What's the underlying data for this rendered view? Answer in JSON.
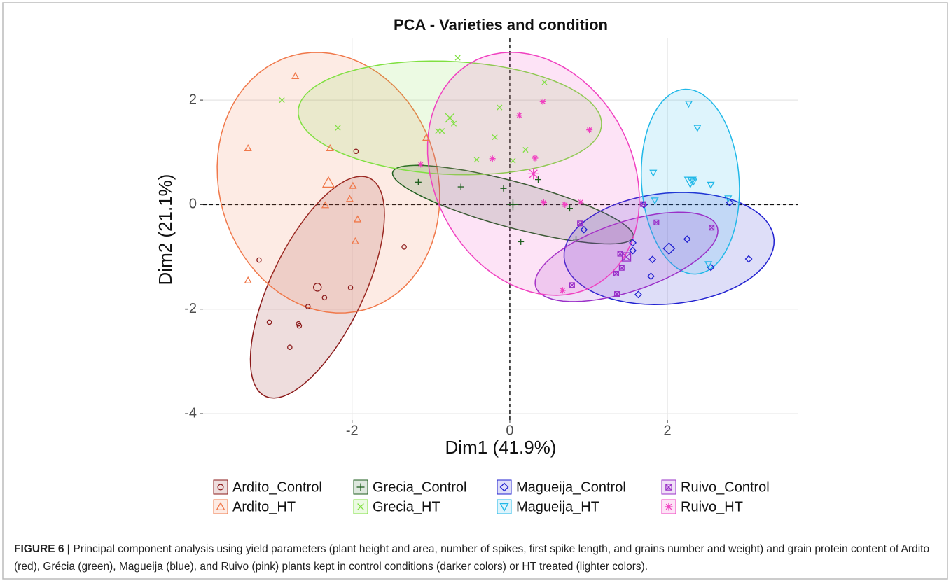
{
  "chart_data": {
    "type": "scatter",
    "title": "PCA - Varieties and condition",
    "x_label": "Dim1 (41.9%)",
    "y_label": "Dim2 (21.1%)",
    "xlim": [
      -3.89,
      3.66
    ],
    "ylim": [
      -4.12,
      3.18
    ],
    "xticks": [
      -2,
      0,
      2
    ],
    "yticks": [
      -4,
      -2,
      0,
      2
    ],
    "grid": true,
    "hline": 0,
    "vline": 0,
    "legend": "bottom",
    "series": [
      {
        "name": "Ardito_Control",
        "color": "#8b1a1a",
        "marker": "circle",
        "x": [
          -1.95,
          -3.18,
          -1.34,
          -2.02,
          -2.35,
          -2.56,
          -3.05,
          -2.68,
          -2.67,
          -2.79
        ],
        "y": [
          1.02,
          -1.06,
          -0.81,
          -1.59,
          -1.78,
          -1.95,
          -2.25,
          -2.28,
          -2.32,
          -2.73
        ],
        "centroid": {
          "x": -2.44,
          "y": -1.58
        },
        "ellipse": {
          "cx": -2.44,
          "cy": -1.58,
          "a": 2.2,
          "b": 0.62,
          "angle": 74
        }
      },
      {
        "name": "Ardito_HT",
        "color": "#f0784a",
        "marker": "triangle",
        "x": [
          -2.72,
          -3.32,
          -2.28,
          -1.06,
          -1.99,
          -2.03,
          -2.34,
          -1.93,
          -1.96,
          -3.32
        ],
        "y": [
          2.46,
          1.08,
          1.08,
          1.28,
          0.36,
          0.11,
          -0.01,
          -0.28,
          -0.7,
          -1.45
        ],
        "centroid": {
          "x": -2.3,
          "y": 0.42
        },
        "ellipse": {
          "cx": -2.3,
          "cy": 0.42,
          "a": 2.5,
          "b": 1.4,
          "angle": 95
        }
      },
      {
        "name": "Grecia_Control",
        "color": "#1e5e1e",
        "marker": "plus",
        "x": [
          -1.16,
          -0.62,
          -0.08,
          0.36,
          0.04,
          0.14,
          0.76,
          0.84
        ],
        "y": [
          0.43,
          0.34,
          0.31,
          0.48,
          0,
          -0.71,
          -0.07,
          -0.66
        ],
        "centroid": {
          "x": 0.04,
          "y": 0
        },
        "ellipse": {
          "cx": 0.04,
          "cy": 0,
          "a": 1.65,
          "b": 0.42,
          "angle": -23
        }
      },
      {
        "name": "Grecia_HT",
        "color": "#7fe040",
        "marker": "x",
        "x": [
          -2.89,
          -2.18,
          -0.66,
          -0.91,
          -0.86,
          -0.71,
          -0.13,
          -0.19,
          0.2,
          0.44,
          -0.42,
          0.04
        ],
        "y": [
          2.0,
          1.47,
          2.81,
          1.41,
          1.41,
          1.55,
          1.86,
          1.29,
          1.05,
          2.34,
          0.86,
          0.84
        ],
        "centroid": {
          "x": -0.76,
          "y": 1.66
        },
        "ellipse": {
          "cx": -0.76,
          "cy": 1.66,
          "a": 1.93,
          "b": 1.08,
          "angle": -5
        }
      },
      {
        "name": "Magueija_Control",
        "color": "#2020d0",
        "marker": "diamond",
        "x": [
          1.7,
          0.94,
          1.56,
          1.56,
          1.81,
          1.79,
          2.25,
          2.79,
          3.03,
          1.63,
          2.55
        ],
        "y": [
          0,
          -0.48,
          -0.73,
          -0.88,
          -1.05,
          -1.37,
          -0.66,
          0.04,
          -1.04,
          -1.72,
          -1.2
        ],
        "centroid": {
          "x": 2.02,
          "y": -0.84
        },
        "ellipse": {
          "cx": 2.02,
          "cy": -0.84,
          "a": 1.35,
          "b": 1.05,
          "angle": 15
        }
      },
      {
        "name": "Magueija_HT",
        "color": "#20b8e8",
        "marker": "triangle-down",
        "x": [
          2.27,
          2.38,
          1.82,
          2.3,
          2.33,
          2.55,
          1.84,
          2.77,
          2.52
        ],
        "y": [
          1.93,
          1.47,
          0.61,
          0.47,
          0.44,
          0.38,
          0.08,
          0.12,
          -1.14
        ],
        "centroid": {
          "x": 2.29,
          "y": 0.44
        },
        "ellipse": {
          "cx": 2.29,
          "cy": 0.44,
          "a": 1.77,
          "b": 0.62,
          "angle": 92
        }
      },
      {
        "name": "Ruivo_Control",
        "color": "#9a30c8",
        "marker": "square",
        "x": [
          1.69,
          1.86,
          0.89,
          2.56,
          1.4,
          1.42,
          1.35,
          0.79,
          1.36
        ],
        "y": [
          0.01,
          -0.34,
          -0.36,
          -0.44,
          -0.94,
          -1.21,
          -1.32,
          -1.54,
          -1.71
        ],
        "centroid": {
          "x": 1.48,
          "y": -1.0
        },
        "ellipse": {
          "cx": 1.48,
          "cy": -1.0,
          "a": 1.3,
          "b": 0.62,
          "angle": 31
        }
      },
      {
        "name": "Ruivo_HT",
        "color": "#f040c0",
        "marker": "asterisk",
        "x": [
          0.42,
          0.12,
          1.01,
          -1.13,
          -0.22,
          0.32,
          0.43,
          0.7,
          0.9,
          0.67
        ],
        "y": [
          1.97,
          1.71,
          1.43,
          0.77,
          0.88,
          0.89,
          0.04,
          0,
          0.05,
          -1.64
        ],
        "centroid": {
          "x": 0.3,
          "y": 0.59
        },
        "ellipse": {
          "cx": 0.3,
          "cy": 0.59,
          "a": 2.35,
          "b": 1.3,
          "angle": 100
        }
      }
    ],
    "caption_label": "FIGURE 6 |",
    "caption": "Principal component analysis using yield parameters (plant height and area, number of spikes, first spike length, and grains number and weight) and grain protein content of Ardito (red), Grécia (green), Magueija (blue), and Ruivo (pink) plants kept in control conditions (darker colors) or HT treated (lighter colors)."
  }
}
